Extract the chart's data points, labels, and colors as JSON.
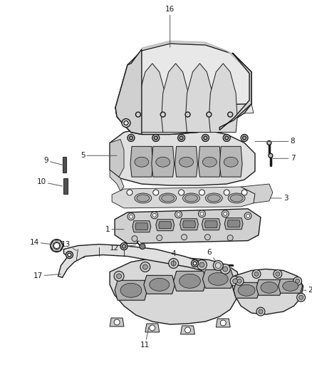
{
  "bg_color": "#ffffff",
  "line_color": "#1a1a1a",
  "figsize": [
    4.39,
    5.33
  ],
  "dpi": 100,
  "label_fs": 7.5,
  "lw_main": 1.0,
  "lw_thin": 0.6,
  "part16_label": "16",
  "part5_label": "5",
  "part8_label": "8",
  "part7_label": "7",
  "part3_label": "3",
  "part1_label": "1",
  "part12_label": "12",
  "part9_label": "9",
  "part10_label": "10",
  "part14_label": "14",
  "part13_label": "13",
  "part17_label": "17",
  "part4_label": "4",
  "part6_label": "6",
  "part2_label": "2",
  "part11_label": "11"
}
